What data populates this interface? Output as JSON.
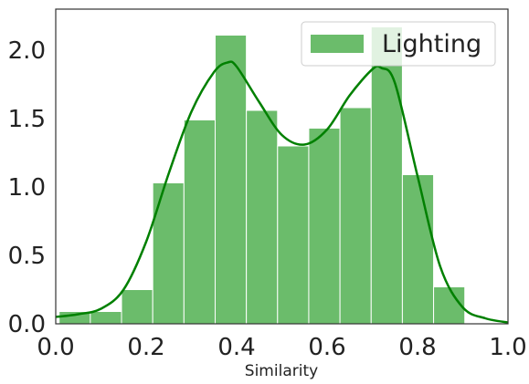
{
  "chart_data": {
    "type": "bar",
    "title": "",
    "xlabel": "Similarity",
    "ylabel": "",
    "xlim": [
      0.0,
      1.0
    ],
    "ylim": [
      0.0,
      2.3
    ],
    "grid": false,
    "legend": {
      "position": "top-right",
      "entries": [
        "Lighting"
      ]
    },
    "x_ticks": [
      0.0,
      0.2,
      0.4,
      0.6,
      0.8,
      1.0
    ],
    "x_tick_labels": [
      "0.0",
      "0.2",
      "0.4",
      "0.6",
      "0.8",
      "1.0"
    ],
    "y_ticks": [
      0.0,
      0.5,
      1.0,
      1.5,
      2.0
    ],
    "y_tick_labels": [
      "0.0",
      "0.5",
      "1.0",
      "1.5",
      "2.0"
    ],
    "series": [
      {
        "name": "Lighting",
        "color": "#2ca02c",
        "bin_edges": [
          0.0075,
          0.0765,
          0.1455,
          0.2145,
          0.2835,
          0.3525,
          0.4215,
          0.4905,
          0.5595,
          0.6285,
          0.6975,
          0.7665,
          0.8355,
          0.9045
        ],
        "density": [
          0.09,
          0.09,
          0.25,
          1.03,
          1.49,
          2.11,
          1.56,
          1.3,
          1.43,
          1.58,
          2.17,
          1.09,
          0.27
        ],
        "kde": {
          "color": "#008000",
          "x": [
            0.0,
            0.05,
            0.1,
            0.15,
            0.2,
            0.25,
            0.3,
            0.35,
            0.38,
            0.4,
            0.45,
            0.5,
            0.55,
            0.6,
            0.65,
            0.7,
            0.72,
            0.75,
            0.8,
            0.85,
            0.9,
            0.95,
            1.0
          ],
          "y": [
            0.05,
            0.07,
            0.11,
            0.25,
            0.6,
            1.1,
            1.55,
            1.84,
            1.91,
            1.88,
            1.62,
            1.38,
            1.31,
            1.42,
            1.67,
            1.86,
            1.87,
            1.76,
            1.08,
            0.42,
            0.12,
            0.04,
            0.01
          ]
        }
      }
    ]
  }
}
